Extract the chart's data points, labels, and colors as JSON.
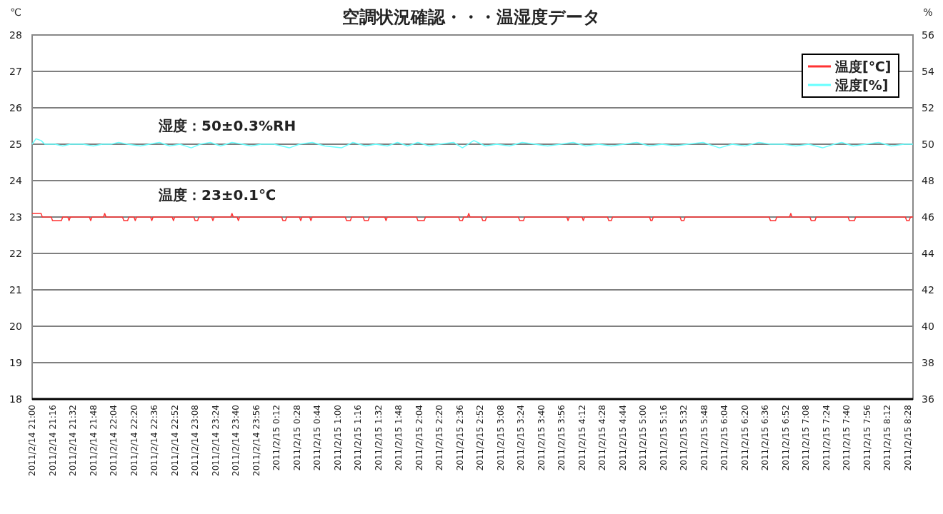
{
  "chart_data": {
    "type": "line",
    "title": "空調状況確認・・・温湿度データ",
    "ylabel": "℃",
    "y2label": "%",
    "grid": "y",
    "legend": "top right",
    "xlim": [
      "2011-02-14T21:00",
      "2011-02-15T08:32"
    ],
    "xticks": [
      {
        "value": "2011-02-14T21:00",
        "label": "2011/2/14 21:00"
      },
      {
        "value": "2011-02-14T21:16",
        "label": "2011/2/14 21:16"
      },
      {
        "value": "2011-02-14T21:32",
        "label": "2011/2/14 21:32"
      },
      {
        "value": "2011-02-14T21:48",
        "label": "2011/2/14 21:48"
      },
      {
        "value": "2011-02-14T22:04",
        "label": "2011/2/14 22:04"
      },
      {
        "value": "2011-02-14T22:20",
        "label": "2011/2/14 22:20"
      },
      {
        "value": "2011-02-14T22:36",
        "label": "2011/2/14 22:36"
      },
      {
        "value": "2011-02-14T22:52",
        "label": "2011/2/14 22:52"
      },
      {
        "value": "2011-02-14T23:08",
        "label": "2011/2/14 23:08"
      },
      {
        "value": "2011-02-14T23:24",
        "label": "2011/2/14 23:24"
      },
      {
        "value": "2011-02-14T23:40",
        "label": "2011/2/14 23:40"
      },
      {
        "value": "2011-02-14T23:56",
        "label": "2011/2/14 23:56"
      },
      {
        "value": "2011-02-15T00:12",
        "label": "2011/2/15 0:12"
      },
      {
        "value": "2011-02-15T00:28",
        "label": "2011/2/15 0:28"
      },
      {
        "value": "2011-02-15T00:44",
        "label": "2011/2/15 0:44"
      },
      {
        "value": "2011-02-15T01:00",
        "label": "2011/2/15 1:00"
      },
      {
        "value": "2011-02-15T01:16",
        "label": "2011/2/15 1:16"
      },
      {
        "value": "2011-02-15T01:32",
        "label": "2011/2/15 1:32"
      },
      {
        "value": "2011-02-15T01:48",
        "label": "2011/2/15 1:48"
      },
      {
        "value": "2011-02-15T02:04",
        "label": "2011/2/15 2:04"
      },
      {
        "value": "2011-02-15T02:20",
        "label": "2011/2/15 2:20"
      },
      {
        "value": "2011-02-15T02:36",
        "label": "2011/2/15 2:36"
      },
      {
        "value": "2011-02-15T02:52",
        "label": "2011/2/15 2:52"
      },
      {
        "value": "2011-02-15T03:08",
        "label": "2011/2/15 3:08"
      },
      {
        "value": "2011-02-15T03:24",
        "label": "2011/2/15 3:24"
      },
      {
        "value": "2011-02-15T03:40",
        "label": "2011/2/15 3:40"
      },
      {
        "value": "2011-02-15T03:56",
        "label": "2011/2/15 3:56"
      },
      {
        "value": "2011-02-15T04:12",
        "label": "2011/2/15 4:12"
      },
      {
        "value": "2011-02-15T04:28",
        "label": "2011/2/15 4:28"
      },
      {
        "value": "2011-02-15T04:44",
        "label": "2011/2/15 4:44"
      },
      {
        "value": "2011-02-15T05:00",
        "label": "2011/2/15 5:00"
      },
      {
        "value": "2011-02-15T05:16",
        "label": "2011/2/15 5:16"
      },
      {
        "value": "2011-02-15T05:32",
        "label": "2011/2/15 5:32"
      },
      {
        "value": "2011-02-15T05:48",
        "label": "2011/2/15 5:48"
      },
      {
        "value": "2011-02-15T06:04",
        "label": "2011/2/15 6:04"
      },
      {
        "value": "2011-02-15T06:20",
        "label": "2011/2/15 6:20"
      },
      {
        "value": "2011-02-15T06:36",
        "label": "2011/2/15 6:36"
      },
      {
        "value": "2011-02-15T06:52",
        "label": "2011/2/15 6:52"
      },
      {
        "value": "2011-02-15T07:08",
        "label": "2011/2/15 7:08"
      },
      {
        "value": "2011-02-15T07:24",
        "label": "2011/2/15 7:24"
      },
      {
        "value": "2011-02-15T07:40",
        "label": "2011/2/15 7:40"
      },
      {
        "value": "2011-02-15T07:56",
        "label": "2011/2/15 7:56"
      },
      {
        "value": "2011-02-15T08:12",
        "label": "2011/2/15 8:12"
      },
      {
        "value": "2011-02-15T08:28",
        "label": "2011/2/15 8:28"
      }
    ],
    "ylim": [
      18,
      28
    ],
    "yticks": [
      18,
      19,
      20,
      21,
      22,
      23,
      24,
      25,
      26,
      27,
      28
    ],
    "y2lim": [
      36,
      56
    ],
    "y2ticks": [
      36,
      38,
      40,
      42,
      44,
      46,
      48,
      50,
      52,
      54,
      56
    ],
    "annotations": [
      "湿度：50±0.3%RH",
      "温度：23±0.1℃"
    ],
    "series": [
      {
        "name": "温度[℃]",
        "color": "#ff3333",
        "x": [
          "2011-02-14T21:00",
          "2011-02-14T21:07",
          "2011-02-14T21:08",
          "2011-02-14T21:15",
          "2011-02-14T21:16",
          "2011-02-14T21:23",
          "2011-02-14T21:24",
          "2011-02-14T21:28",
          "2011-02-14T21:29",
          "2011-02-14T21:30",
          "2011-02-14T21:45",
          "2011-02-14T21:46",
          "2011-02-14T21:47",
          "2011-02-14T21:56",
          "2011-02-14T21:57",
          "2011-02-14T21:58",
          "2011-02-14T22:11",
          "2011-02-14T22:12",
          "2011-02-14T22:15",
          "2011-02-14T22:16",
          "2011-02-14T22:20",
          "2011-02-14T22:21",
          "2011-02-14T22:22",
          "2011-02-14T22:33",
          "2011-02-14T22:34",
          "2011-02-14T22:35",
          "2011-02-14T22:50",
          "2011-02-14T22:51",
          "2011-02-14T22:52",
          "2011-02-14T23:07",
          "2011-02-14T23:08",
          "2011-02-14T23:10",
          "2011-02-14T23:11",
          "2011-02-14T23:21",
          "2011-02-14T23:22",
          "2011-02-14T23:23",
          "2011-02-14T23:36",
          "2011-02-14T23:37",
          "2011-02-14T23:38",
          "2011-02-14T23:41",
          "2011-02-14T23:42",
          "2011-02-14T23:43",
          "2011-02-15T00:16",
          "2011-02-15T00:17",
          "2011-02-15T00:19",
          "2011-02-15T00:20",
          "2011-02-15T00:30",
          "2011-02-15T00:31",
          "2011-02-15T00:32",
          "2011-02-15T00:38",
          "2011-02-15T00:39",
          "2011-02-15T00:40",
          "2011-02-15T01:06",
          "2011-02-15T01:07",
          "2011-02-15T01:10",
          "2011-02-15T01:11",
          "2011-02-15T01:20",
          "2011-02-15T01:21",
          "2011-02-15T01:24",
          "2011-02-15T01:25",
          "2011-02-15T01:37",
          "2011-02-15T01:38",
          "2011-02-15T01:39",
          "2011-02-15T02:02",
          "2011-02-15T02:03",
          "2011-02-15T02:08",
          "2011-02-15T02:09",
          "2011-02-15T02:35",
          "2011-02-15T02:36",
          "2011-02-15T02:38",
          "2011-02-15T02:39",
          "2011-02-15T02:42",
          "2011-02-15T02:43",
          "2011-02-15T02:44",
          "2011-02-15T02:53",
          "2011-02-15T02:54",
          "2011-02-15T02:56",
          "2011-02-15T02:57",
          "2011-02-15T03:22",
          "2011-02-15T03:23",
          "2011-02-15T03:26",
          "2011-02-15T03:27",
          "2011-02-15T04:00",
          "2011-02-15T04:01",
          "2011-02-15T04:02",
          "2011-02-15T04:12",
          "2011-02-15T04:13",
          "2011-02-15T04:14",
          "2011-02-15T04:32",
          "2011-02-15T04:33",
          "2011-02-15T04:35",
          "2011-02-15T04:36",
          "2011-02-15T05:05",
          "2011-02-15T05:06",
          "2011-02-15T05:07",
          "2011-02-15T05:08",
          "2011-02-15T05:29",
          "2011-02-15T05:30",
          "2011-02-15T05:32",
          "2011-02-15T05:33",
          "2011-02-15T06:39",
          "2011-02-15T06:40",
          "2011-02-15T06:44",
          "2011-02-15T06:45",
          "2011-02-15T06:55",
          "2011-02-15T06:56",
          "2011-02-15T06:57",
          "2011-02-15T07:11",
          "2011-02-15T07:12",
          "2011-02-15T07:15",
          "2011-02-15T07:16",
          "2011-02-15T07:41",
          "2011-02-15T07:42",
          "2011-02-15T07:46",
          "2011-02-15T07:47",
          "2011-02-15T08:26",
          "2011-02-15T08:27",
          "2011-02-15T08:29",
          "2011-02-15T08:30",
          "2011-02-15T08:32"
        ],
        "values": [
          23.1,
          23.1,
          23,
          23,
          22.9,
          22.9,
          23,
          23,
          22.9,
          23,
          23,
          22.9,
          23,
          23,
          23.1,
          23,
          23,
          22.9,
          22.9,
          23,
          23,
          22.9,
          23,
          23,
          22.9,
          23,
          23,
          22.9,
          23,
          23,
          22.9,
          22.9,
          23,
          23,
          22.9,
          23,
          23,
          23.1,
          23,
          23,
          22.9,
          23,
          23,
          22.9,
          22.9,
          23,
          23,
          22.9,
          23,
          23,
          22.9,
          23,
          23,
          22.9,
          22.9,
          23,
          23,
          22.9,
          22.9,
          23,
          23,
          22.9,
          23,
          23,
          22.9,
          22.9,
          23,
          23,
          22.9,
          22.9,
          23,
          23,
          23.1,
          23,
          23,
          22.9,
          22.9,
          23,
          23,
          22.9,
          22.9,
          23,
          23,
          22.9,
          23,
          23,
          22.9,
          23,
          23,
          22.9,
          22.9,
          23,
          23,
          22.9,
          22.9,
          23,
          23,
          22.9,
          22.9,
          23,
          23,
          22.9,
          22.9,
          23,
          23,
          23.1,
          23,
          23,
          22.9,
          22.9,
          23,
          23,
          22.9,
          22.9,
          23,
          23,
          22.9,
          22.9,
          23,
          23
        ]
      },
      {
        "name": "湿度[%]",
        "color": "#66ffff",
        "axis": "y2",
        "x": [
          "2011-02-14T21:00",
          "2011-02-14T21:03",
          "2011-02-14T21:07",
          "2011-02-14T21:10",
          "2011-02-14T21:18",
          "2011-02-14T21:24",
          "2011-02-14T21:30",
          "2011-02-14T21:40",
          "2011-02-14T21:48",
          "2011-02-14T21:55",
          "2011-02-14T22:02",
          "2011-02-14T22:08",
          "2011-02-14T22:15",
          "2011-02-14T22:25",
          "2011-02-14T22:32",
          "2011-02-14T22:40",
          "2011-02-14T22:48",
          "2011-02-14T22:56",
          "2011-02-14T23:05",
          "2011-02-14T23:12",
          "2011-02-14T23:20",
          "2011-02-14T23:28",
          "2011-02-14T23:37",
          "2011-02-14T23:45",
          "2011-02-14T23:52",
          "2011-02-15T00:00",
          "2011-02-15T00:10",
          "2011-02-15T00:22",
          "2011-02-15T00:30",
          "2011-02-15T00:40",
          "2011-02-15T00:50",
          "2011-02-15T01:03",
          "2011-02-15T01:12",
          "2011-02-15T01:22",
          "2011-02-15T01:30",
          "2011-02-15T01:39",
          "2011-02-15T01:47",
          "2011-02-15T01:55",
          "2011-02-15T02:03",
          "2011-02-15T02:12",
          "2011-02-15T02:20",
          "2011-02-15T02:31",
          "2011-02-15T02:38",
          "2011-02-15T02:47",
          "2011-02-15T02:56",
          "2011-02-15T03:05",
          "2011-02-15T03:15",
          "2011-02-15T03:25",
          "2011-02-15T03:35",
          "2011-02-15T03:45",
          "2011-02-15T03:55",
          "2011-02-15T04:05",
          "2011-02-15T04:15",
          "2011-02-15T04:25",
          "2011-02-15T04:35",
          "2011-02-15T04:45",
          "2011-02-15T04:55",
          "2011-02-15T05:05",
          "2011-02-15T05:15",
          "2011-02-15T05:25",
          "2011-02-15T05:35",
          "2011-02-15T05:47",
          "2011-02-15T06:00",
          "2011-02-15T06:10",
          "2011-02-15T06:20",
          "2011-02-15T06:31",
          "2011-02-15T06:40",
          "2011-02-15T06:50",
          "2011-02-15T07:00",
          "2011-02-15T07:10",
          "2011-02-15T07:21",
          "2011-02-15T07:30",
          "2011-02-15T07:36",
          "2011-02-15T07:45",
          "2011-02-15T07:55",
          "2011-02-15T08:05",
          "2011-02-15T08:15",
          "2011-02-15T08:25",
          "2011-02-15T08:32"
        ],
        "values": [
          50.0,
          50.3,
          50.2,
          50.0,
          50.0,
          49.9,
          50.0,
          50.0,
          49.9,
          50.0,
          50.0,
          50.1,
          50.0,
          49.9,
          50.0,
          50.1,
          49.9,
          50.0,
          49.8,
          50.0,
          50.1,
          49.9,
          50.1,
          50.0,
          49.9,
          50.0,
          50.0,
          49.8,
          50.0,
          50.1,
          49.9,
          49.8,
          50.1,
          49.9,
          50.0,
          49.9,
          50.1,
          49.9,
          50.1,
          49.9,
          50.0,
          50.1,
          49.8,
          50.2,
          49.9,
          50.0,
          49.9,
          50.1,
          50.0,
          49.9,
          50.0,
          50.1,
          49.9,
          50.0,
          49.9,
          50.0,
          50.1,
          49.9,
          50.0,
          49.9,
          50.0,
          50.1,
          49.8,
          50.0,
          49.9,
          50.1,
          50.0,
          50.0,
          49.9,
          50.0,
          49.8,
          50.0,
          50.1,
          49.9,
          50.0,
          50.1,
          49.9,
          50.0,
          50.0
        ]
      }
    ]
  }
}
